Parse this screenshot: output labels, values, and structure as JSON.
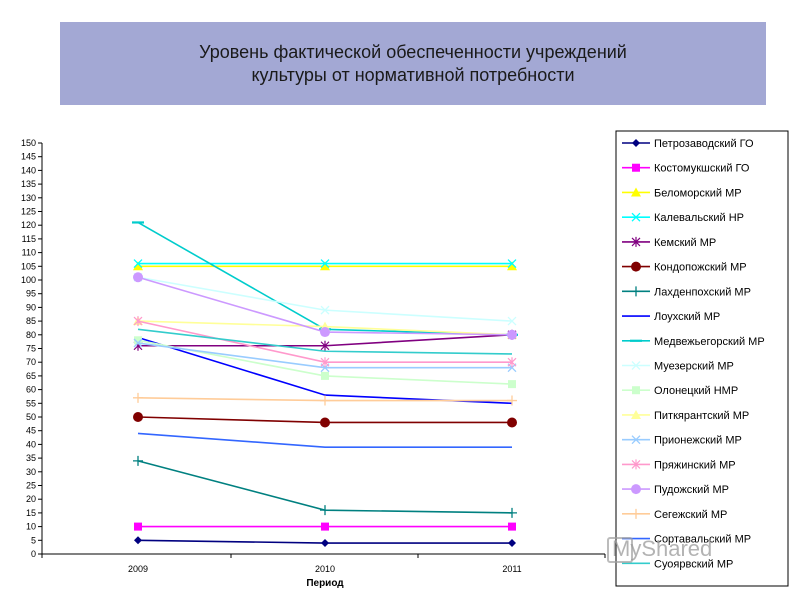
{
  "title": "Уровень фактической обеспеченности учреждений\nкультуры от нормативной потребности",
  "watermark": "MyShared",
  "chart_data": {
    "type": "line",
    "title": "Уровень фактической обеспеченности учреждений культуры от нормативной потребности",
    "xlabel": "Период",
    "ylabel": "",
    "categories": [
      "2009",
      "2010",
      "2011"
    ],
    "ylim": [
      0,
      150
    ],
    "ytick_step": 5,
    "grid": false,
    "legend_position": "right",
    "series": [
      {
        "name": "Петрозаводский ГО",
        "values": [
          5,
          4,
          4
        ],
        "color": "#000080",
        "marker": "diamond"
      },
      {
        "name": "Костомукшский ГО",
        "values": [
          10,
          10,
          10
        ],
        "color": "#ff00ff",
        "marker": "square"
      },
      {
        "name": "Беломорский МР",
        "values": [
          105,
          105,
          105
        ],
        "color": "#ffff00",
        "marker": "triangle"
      },
      {
        "name": "Калевальский НР",
        "values": [
          106,
          106,
          106
        ],
        "color": "#00ffff",
        "marker": "x"
      },
      {
        "name": "Кемский МР",
        "values": [
          76,
          76,
          80
        ],
        "color": "#800080",
        "marker": "star"
      },
      {
        "name": "Кондопожский МР",
        "values": [
          50,
          48,
          48
        ],
        "color": "#800000",
        "marker": "circle"
      },
      {
        "name": "Лахденпохский МР",
        "values": [
          34,
          16,
          15
        ],
        "color": "#008080",
        "marker": "plus"
      },
      {
        "name": "Лоухский МР",
        "values": [
          79,
          58,
          55
        ],
        "color": "#0000ff",
        "marker": "none"
      },
      {
        "name": "Медвежьегорский МР",
        "values": [
          121,
          82,
          80
        ],
        "color": "#00cccc",
        "marker": "dash"
      },
      {
        "name": "Муезерский МР",
        "values": [
          101,
          89,
          85
        ],
        "color": "#ccffff",
        "marker": "x"
      },
      {
        "name": "Олонецкий НМР",
        "values": [
          78,
          65,
          62
        ],
        "color": "#ccffcc",
        "marker": "square"
      },
      {
        "name": "Питкярантский МР",
        "values": [
          85,
          83,
          80
        ],
        "color": "#ffff99",
        "marker": "triangle"
      },
      {
        "name": "Прионежский МР",
        "values": [
          77,
          68,
          68
        ],
        "color": "#99ccff",
        "marker": "x"
      },
      {
        "name": "Пряжинский МР",
        "values": [
          85,
          70,
          70
        ],
        "color": "#ff99cc",
        "marker": "star"
      },
      {
        "name": "Пудожский МР",
        "values": [
          101,
          81,
          80
        ],
        "color": "#cc99ff",
        "marker": "circle"
      },
      {
        "name": "Сегежский МР",
        "values": [
          57,
          56,
          56
        ],
        "color": "#ffcc99",
        "marker": "plus"
      },
      {
        "name": "Сортавальский МР",
        "values": [
          44,
          39,
          39
        ],
        "color": "#3366ff",
        "marker": "none"
      },
      {
        "name": "Суоярвский МР",
        "values": [
          82,
          74,
          73
        ],
        "color": "#33cccc",
        "marker": "none"
      }
    ]
  }
}
